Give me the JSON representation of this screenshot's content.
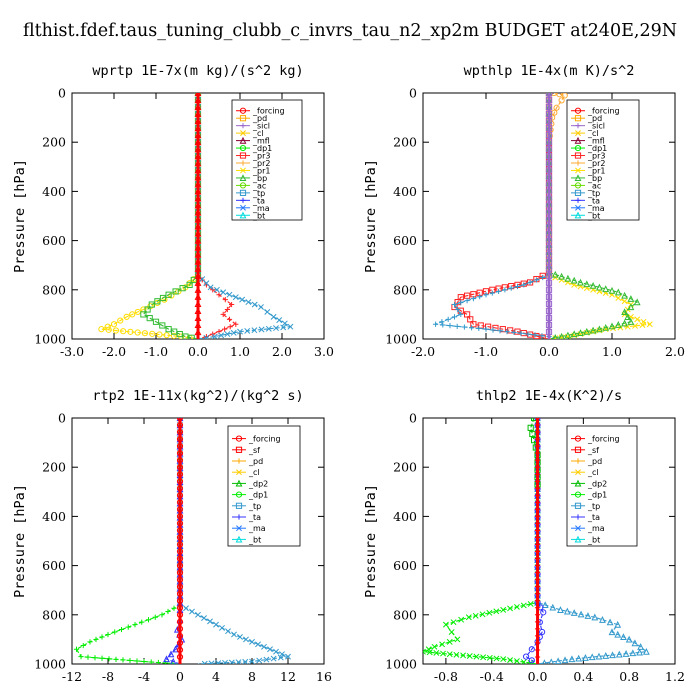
{
  "figure_title": "flthist.fdef.taus_tuning_clubb_c_invrs_tau_n2_xp2m  BUDGET at240E,29N",
  "legend_colors": {
    "_forcing": "#ff0000",
    "_sf": "#ff0000",
    "_pd": "#ffaa00",
    "_sicl": "#9966cc",
    "_cl": "#ffcc00",
    "_mfl": "#880033",
    "_dp2": "#00bb00",
    "_dp1": "#00ee00",
    "_pr3": "#ff2222",
    "_pr2": "#ffaa33",
    "_pr1": "#ffdd00",
    "_bp": "#33bb33",
    "_ac": "#66dd00",
    "_tp": "#3399cc",
    "_ta": "#3333ff",
    "_ma": "#2277ff",
    "_bt": "#00dddd"
  },
  "chart_data": [
    {
      "type": "line",
      "title": "wprtp  1E-7x(m kg)/(s^2 kg)",
      "ylabel": "Pressure [hPa]",
      "xlim": [
        -3.0,
        3.0
      ],
      "ylim": [
        1000,
        0
      ],
      "xticks": [
        -3.0,
        -2.0,
        -1.0,
        0.0,
        1.0,
        2.0,
        3.0
      ],
      "xtick_labels": [
        "-3.0",
        "-2.0",
        "-1.0",
        "0.0",
        "1.0",
        "2.0",
        "3.0"
      ],
      "yticks": [
        0,
        200,
        400,
        600,
        800,
        1000
      ],
      "ytick_labels": [
        "0",
        "200",
        "400",
        "600",
        "800",
        "1000"
      ],
      "legend": [
        "_forcing",
        "_pd",
        "_sicl",
        "_cl",
        "_mfl",
        "_dp1",
        "_pr3",
        "_pr2",
        "_pr1",
        "_bp",
        "_ac",
        "_tp",
        "_ta",
        "_ma",
        "_bt"
      ],
      "series": [
        {
          "name": "_pr1",
          "x": [
            0,
            0,
            -0.3,
            -0.8,
            -1.3,
            -1.7,
            -2.0,
            -2.3,
            -0.4,
            0
          ],
          "y": [
            0,
            740,
            790,
            840,
            880,
            910,
            940,
            960,
            990,
            1000
          ]
        },
        {
          "name": "_bp",
          "x": [
            0,
            0,
            -0.2,
            -0.7,
            -1.1,
            -1.3,
            -1.0,
            -0.7,
            -0.3,
            0
          ],
          "y": [
            0,
            740,
            780,
            820,
            860,
            900,
            930,
            960,
            990,
            1000
          ]
        },
        {
          "name": "_pr3",
          "x": [
            0,
            0,
            0.2,
            0.5,
            0.8,
            0.6,
            0.9,
            0.5,
            0.2,
            0
          ],
          "y": [
            0,
            740,
            780,
            820,
            860,
            900,
            940,
            970,
            990,
            1000
          ]
        },
        {
          "name": "_tp",
          "x": [
            0,
            0,
            0.3,
            0.9,
            1.5,
            1.8,
            2.2,
            1.0,
            0.4,
            0
          ],
          "y": [
            0,
            740,
            790,
            830,
            870,
            910,
            950,
            970,
            990,
            1000
          ]
        },
        {
          "name": "_forcing",
          "x": [
            0,
            0,
            0,
            0,
            0,
            0
          ],
          "y": [
            0,
            200,
            400,
            600,
            800,
            1000
          ]
        }
      ]
    },
    {
      "type": "line",
      "title": "wpthlp  1E-4x(m K)/s^2",
      "ylabel": "Pressure [hPa]",
      "xlim": [
        -2.0,
        2.0
      ],
      "ylim": [
        1000,
        0
      ],
      "xticks": [
        -2.0,
        -1.0,
        0.0,
        1.0,
        2.0
      ],
      "xtick_labels": [
        "-2.0",
        "-1.0",
        "0.0",
        "1.0",
        "2.0"
      ],
      "yticks": [
        0,
        200,
        400,
        600,
        800,
        1000
      ],
      "ytick_labels": [
        "0",
        "200",
        "400",
        "600",
        "800",
        "1000"
      ],
      "legend": [
        "_forcing",
        "_pd",
        "_sicl",
        "_cl",
        "_mfl",
        "_dp1",
        "_pr3",
        "_pr2",
        "_pr1",
        "_bp",
        "_ac",
        "_tp",
        "_ta",
        "_ma",
        "_bt"
      ],
      "series": [
        {
          "name": "_pr3",
          "x": [
            0,
            0,
            -0.3,
            -0.9,
            -1.4,
            -1.5,
            -1.3,
            -1.2,
            -0.5,
            0
          ],
          "y": [
            0,
            730,
            770,
            800,
            830,
            870,
            900,
            940,
            970,
            1000
          ]
        },
        {
          "name": "_tp",
          "x": [
            0,
            0,
            -0.4,
            -1.0,
            -1.5,
            -1.4,
            -1.8,
            -1.0,
            0,
            0.3
          ],
          "y": [
            0,
            740,
            780,
            820,
            860,
            900,
            940,
            960,
            990,
            1000
          ]
        },
        {
          "name": "_pr1",
          "x": [
            0,
            0,
            0.4,
            1.0,
            1.3,
            1.2,
            1.6,
            0.9,
            0.3,
            0
          ],
          "y": [
            0,
            740,
            780,
            820,
            860,
            900,
            940,
            960,
            990,
            1000
          ]
        },
        {
          "name": "_bp",
          "x": [
            0,
            0,
            0.5,
            1.1,
            1.4,
            1.2,
            1.3,
            0.8,
            0.3,
            0
          ],
          "y": [
            0,
            730,
            770,
            810,
            850,
            890,
            930,
            960,
            985,
            1000
          ]
        },
        {
          "name": "_pr2",
          "x": [
            0.08,
            0.25,
            0.2,
            0.12,
            0.05,
            0
          ],
          "y": [
            0,
            10,
            30,
            60,
            100,
            200
          ]
        },
        {
          "name": "_sicl",
          "x": [
            0,
            0,
            0,
            0,
            0,
            0
          ],
          "y": [
            0,
            200,
            400,
            600,
            800,
            1000
          ]
        }
      ]
    },
    {
      "type": "line",
      "title": "rtp2  1E-11x(kg^2)/(kg^2 s)",
      "ylabel": "Pressure [hPa]",
      "xlim": [
        -12,
        16
      ],
      "ylim": [
        1000,
        0
      ],
      "xticks": [
        -12,
        -8,
        -4,
        0,
        4,
        8,
        12,
        16
      ],
      "xtick_labels": [
        "-12",
        "-8",
        "-4",
        "0",
        "4",
        "8",
        "12",
        "16"
      ],
      "yticks": [
        0,
        200,
        400,
        600,
        800,
        1000
      ],
      "ytick_labels": [
        "0",
        "200",
        "400",
        "600",
        "800",
        "1000"
      ],
      "legend": [
        "_forcing",
        "_sf",
        "_pd",
        "_cl",
        "_dp2",
        "_dp1",
        "_tp",
        "_ta",
        "_ma",
        "_bt"
      ],
      "series": [
        {
          "name": "_dp1",
          "x": [
            0,
            0,
            -2,
            -5,
            -8,
            -10,
            -11.5,
            -11,
            -4,
            0
          ],
          "y": [
            0,
            760,
            800,
            840,
            880,
            910,
            940,
            970,
            990,
            1000
          ]
        },
        {
          "name": "_tp",
          "x": [
            0,
            0,
            2,
            4,
            6,
            8,
            10,
            12,
            8,
            2
          ],
          "y": [
            0,
            760,
            800,
            840,
            880,
            910,
            940,
            970,
            990,
            1000
          ]
        },
        {
          "name": "_ta",
          "x": [
            0,
            0,
            0,
            -0.3,
            0.2,
            -0.5,
            -1,
            -1.5,
            0
          ],
          "y": [
            0,
            780,
            820,
            860,
            900,
            940,
            960,
            980,
            1000
          ]
        },
        {
          "name": "_forcing",
          "x": [
            0,
            0,
            0,
            0,
            0,
            0
          ],
          "y": [
            0,
            200,
            400,
            600,
            800,
            1000
          ]
        }
      ]
    },
    {
      "type": "line",
      "title": "thlp2  1E-4x(K^2)/s",
      "ylabel": "Pressure [hPa]",
      "xlim": [
        -1.0,
        1.2
      ],
      "ylim": [
        1000,
        0
      ],
      "xticks": [
        -0.8,
        -0.4,
        0.0,
        0.4,
        0.8,
        1.2
      ],
      "xtick_labels": [
        "-0.8",
        "-0.4",
        "0.0",
        "0.4",
        "0.8",
        "1.2"
      ],
      "yticks": [
        0,
        200,
        400,
        600,
        800,
        1000
      ],
      "ytick_labels": [
        "0",
        "200",
        "400",
        "600",
        "800",
        "1000"
      ],
      "legend": [
        "_forcing",
        "_sf",
        "_pd",
        "_cl",
        "_dp2",
        "_dp1",
        "_tp",
        "_ta",
        "_ma",
        "_bt"
      ],
      "series": [
        {
          "name": "_dp1",
          "x": [
            0,
            0,
            -0.3,
            -0.6,
            -0.8,
            -0.75,
            -0.7,
            -0.9,
            -1.0,
            -0.3,
            0
          ],
          "y": [
            0,
            750,
            780,
            810,
            840,
            870,
            900,
            930,
            950,
            980,
            1000
          ]
        },
        {
          "name": "_tp",
          "x": [
            0,
            0,
            0.2,
            0.5,
            0.7,
            0.65,
            0.8,
            0.9,
            0.95,
            0.3,
            0
          ],
          "y": [
            0,
            750,
            780,
            810,
            840,
            870,
            900,
            930,
            950,
            980,
            1000
          ]
        },
        {
          "name": "_ta",
          "x": [
            0,
            0,
            0.05,
            0.02,
            0.04,
            0,
            -0.05,
            -0.1,
            0
          ],
          "y": [
            0,
            750,
            790,
            830,
            870,
            910,
            940,
            970,
            1000
          ]
        },
        {
          "name": "_dp2",
          "x": [
            -0.03,
            -0.06,
            -0.03,
            0,
            0
          ],
          "y": [
            0,
            40,
            90,
            150,
            300
          ]
        },
        {
          "name": "_forcing",
          "x": [
            0,
            0,
            0,
            0,
            0,
            0
          ],
          "y": [
            0,
            200,
            400,
            600,
            800,
            1000
          ]
        }
      ]
    }
  ]
}
